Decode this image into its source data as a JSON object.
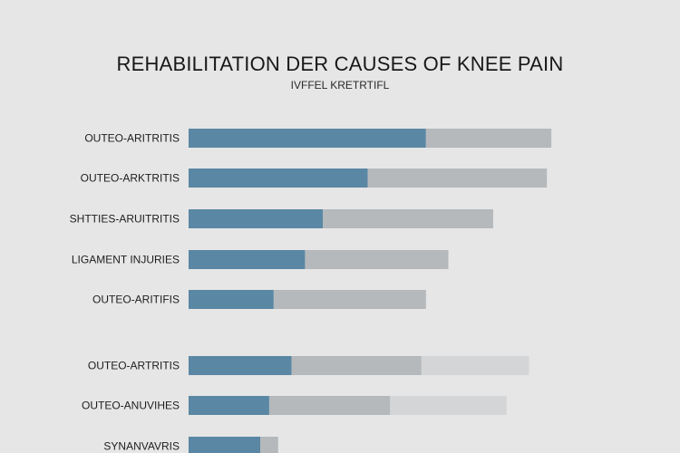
{
  "colors": {
    "background": "#e6e6e6",
    "primary": "#5a87a4",
    "secondary": "#b5b9bc",
    "tertiary": "#d4d5d6"
  },
  "chart_data": {
    "type": "bar",
    "orientation": "horizontal",
    "stacked": true,
    "title": "REHABILITATION DER CAUSES OF KNEE PAIN",
    "subtitle": "IVFFEL KRETRTIFL",
    "categories": [
      "OUTEO-ARITRITIS",
      "OUTEO-ARKTRITIS",
      "SHTTIES-ARUITRITIS",
      "LIGAMENT INJURIES",
      "OUTEO-ARITIFIS",
      "OUTEO-ARTRITIS",
      "OUTEO-ANUVIHES",
      "SYNANVAVRIS"
    ],
    "series": [
      {
        "values": [
          53,
          40,
          30,
          26,
          19,
          23,
          18,
          16
        ]
      },
      {
        "values": [
          28,
          40,
          38,
          32,
          34,
          29,
          27,
          4
        ]
      },
      {
        "values": [
          0,
          0,
          0,
          0,
          0,
          24,
          26,
          0
        ]
      }
    ],
    "xlim": [
      0,
      100
    ],
    "grid": false,
    "legend": "none"
  }
}
